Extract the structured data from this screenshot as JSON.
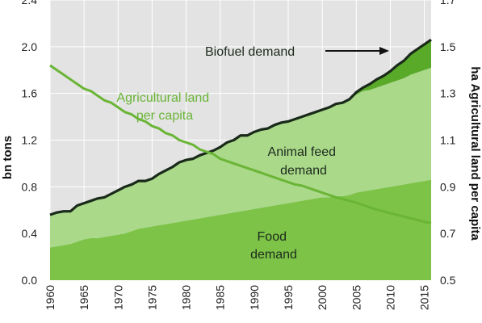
{
  "chart_data": {
    "type": "area",
    "title": "",
    "x": [
      1960,
      1961,
      1962,
      1963,
      1964,
      1965,
      1966,
      1967,
      1968,
      1969,
      1970,
      1971,
      1972,
      1973,
      1974,
      1975,
      1976,
      1977,
      1978,
      1979,
      1980,
      1981,
      1982,
      1983,
      1984,
      1985,
      1986,
      1987,
      1988,
      1989,
      1990,
      1991,
      1992,
      1993,
      1994,
      1995,
      1996,
      1997,
      1998,
      1999,
      2000,
      2001,
      2002,
      2003,
      2004,
      2005,
      2006,
      2007,
      2008,
      2009,
      2010,
      2011,
      2012,
      2013,
      2014,
      2015,
      2016
    ],
    "xlim": [
      1960,
      2016
    ],
    "x_ticks": [
      "1960",
      "1965",
      "1970",
      "1975",
      "1980",
      "1985",
      "1990",
      "1995",
      "2000",
      "2005",
      "2010",
      "2015"
    ],
    "y_left": {
      "label": "bn tons",
      "ylim": [
        0,
        2.4
      ],
      "ticks": [
        "0.0",
        "0.4",
        "0.8",
        "1.2",
        "1.6",
        "2.0",
        "2.4"
      ]
    },
    "y_right": {
      "label": "ha Agricultural land per capita",
      "ylim": [
        0.5,
        1.7
      ],
      "ticks": [
        "0.5",
        "0.7",
        "0.9",
        "1.1",
        "1.3",
        "1.5",
        "1.7"
      ]
    },
    "series": [
      {
        "name": "Food demand",
        "label_lines": [
          "Food",
          "demand"
        ],
        "color": "#7cc347",
        "axis": "left",
        "stacked": true,
        "values": [
          0.28,
          0.29,
          0.3,
          0.31,
          0.33,
          0.35,
          0.36,
          0.36,
          0.37,
          0.38,
          0.39,
          0.4,
          0.42,
          0.44,
          0.45,
          0.46,
          0.47,
          0.48,
          0.49,
          0.5,
          0.51,
          0.52,
          0.53,
          0.54,
          0.55,
          0.56,
          0.57,
          0.58,
          0.59,
          0.6,
          0.61,
          0.62,
          0.63,
          0.64,
          0.65,
          0.66,
          0.67,
          0.68,
          0.69,
          0.7,
          0.71,
          0.71,
          0.72,
          0.72,
          0.73,
          0.75,
          0.76,
          0.77,
          0.78,
          0.79,
          0.8,
          0.81,
          0.82,
          0.83,
          0.84,
          0.85,
          0.86
        ]
      },
      {
        "name": "Animal feed demand",
        "label_lines": [
          "Animal feed",
          "demand"
        ],
        "color": "#aad98a",
        "axis": "left",
        "stacked": true,
        "values": [
          0.28,
          0.29,
          0.29,
          0.28,
          0.31,
          0.31,
          0.32,
          0.34,
          0.34,
          0.36,
          0.38,
          0.4,
          0.4,
          0.41,
          0.4,
          0.41,
          0.44,
          0.46,
          0.48,
          0.51,
          0.52,
          0.52,
          0.54,
          0.55,
          0.56,
          0.58,
          0.61,
          0.62,
          0.65,
          0.64,
          0.66,
          0.67,
          0.67,
          0.69,
          0.7,
          0.7,
          0.71,
          0.72,
          0.73,
          0.74,
          0.75,
          0.77,
          0.79,
          0.8,
          0.81,
          0.84,
          0.86,
          0.86,
          0.87,
          0.88,
          0.89,
          0.9,
          0.91,
          0.93,
          0.94,
          0.95,
          0.96
        ]
      },
      {
        "name": "Biofuel demand",
        "label_lines": [
          "Biofuel demand"
        ],
        "color": "#5aaa2a",
        "axis": "left",
        "stacked": true,
        "values": [
          0,
          0,
          0,
          0,
          0,
          0,
          0,
          0,
          0,
          0,
          0,
          0,
          0,
          0,
          0,
          0,
          0,
          0,
          0,
          0,
          0,
          0,
          0,
          0,
          0,
          0,
          0,
          0,
          0,
          0,
          0,
          0,
          0,
          0,
          0,
          0,
          0,
          0,
          0,
          0,
          0,
          0,
          0,
          0,
          0.01,
          0.02,
          0.03,
          0.05,
          0.07,
          0.08,
          0.1,
          0.13,
          0.15,
          0.18,
          0.2,
          0.22,
          0.24
        ]
      },
      {
        "name": "Agricultural land per capita",
        "label_lines": [
          "Agricultural land",
          "per capita"
        ],
        "color": "#6ab536",
        "axis": "right",
        "type": "line",
        "values": [
          1.42,
          1.4,
          1.38,
          1.36,
          1.34,
          1.32,
          1.31,
          1.29,
          1.27,
          1.26,
          1.24,
          1.22,
          1.21,
          1.19,
          1.18,
          1.16,
          1.15,
          1.13,
          1.12,
          1.1,
          1.09,
          1.08,
          1.06,
          1.05,
          1.04,
          1.02,
          1.01,
          1.0,
          0.99,
          0.98,
          0.97,
          0.96,
          0.95,
          0.94,
          0.93,
          0.92,
          0.91,
          0.905,
          0.895,
          0.885,
          0.875,
          0.865,
          0.855,
          0.848,
          0.84,
          0.832,
          0.822,
          0.812,
          0.802,
          0.795,
          0.787,
          0.78,
          0.772,
          0.765,
          0.758,
          0.75,
          0.745
        ]
      }
    ],
    "total_line_color": "#1a2a1a",
    "plot_background": "#e3e3e3",
    "grid": true,
    "annotations": [
      {
        "text": "Biofuel demand",
        "arrow": "right"
      }
    ]
  }
}
